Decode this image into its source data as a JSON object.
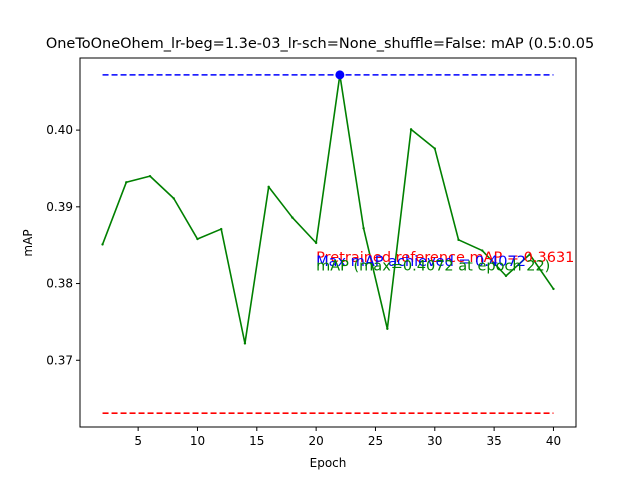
{
  "chart_data": {
    "type": "line",
    "title": "OneToOneOhem_lr-beg=1.3e-03_lr-sch=None_shuffle=False:  mAP (0.5:0.05",
    "xlabel": "Epoch",
    "ylabel": "mAP",
    "xlim": [
      0.1,
      41.9
    ],
    "ylim": [
      0.3613,
      0.4094
    ],
    "x_ticks": [
      {
        "value": 5,
        "label": "5"
      },
      {
        "value": 10,
        "label": "10"
      },
      {
        "value": 15,
        "label": "15"
      },
      {
        "value": 20,
        "label": "20"
      },
      {
        "value": 25,
        "label": "25"
      },
      {
        "value": 30,
        "label": "30"
      },
      {
        "value": 35,
        "label": "35"
      },
      {
        "value": 40,
        "label": "40"
      }
    ],
    "y_ticks": [
      {
        "value": 0.37,
        "label": "0.37"
      },
      {
        "value": 0.38,
        "label": "0.38"
      },
      {
        "value": 0.39,
        "label": "0.39"
      },
      {
        "value": 0.4,
        "label": "0.40"
      }
    ],
    "grid": false,
    "series": [
      {
        "name": "mAP",
        "color": "#008000",
        "x": [
          2,
          4,
          6,
          8,
          10,
          12,
          14,
          16,
          18,
          20,
          22,
          24,
          26,
          28,
          30,
          32,
          34,
          36,
          38,
          40
        ],
        "values": [
          0.3851,
          0.3932,
          0.394,
          0.3911,
          0.3858,
          0.3871,
          0.3722,
          0.3926,
          0.3886,
          0.3853,
          0.4072,
          0.3872,
          0.3741,
          0.4001,
          0.3976,
          0.3857,
          0.3843,
          0.381,
          0.3838,
          0.3793
        ]
      }
    ],
    "reference_lines": [
      {
        "name": "max",
        "color": "#0000ff",
        "value": 0.4072,
        "x_range": [
          2,
          40
        ]
      },
      {
        "name": "pretrained",
        "color": "#ff0000",
        "value": 0.3631,
        "x_range": [
          2,
          40
        ]
      }
    ],
    "max_marker": {
      "x": 22,
      "y": 0.4072,
      "color": "#0000ff"
    },
    "annotations": [
      {
        "text": "Pretrained reference mAP = 0.3631",
        "color": "#ff0000",
        "x": 20,
        "y": 0.3828
      },
      {
        "text": "Max mAP achieved = 0.4072",
        "color": "#0000ff",
        "x": 20,
        "y": 0.3823
      },
      {
        "text": "mAP (max=0.4072 at epoch 22)",
        "color": "#008000",
        "x": 20,
        "y": 0.3817
      }
    ]
  }
}
